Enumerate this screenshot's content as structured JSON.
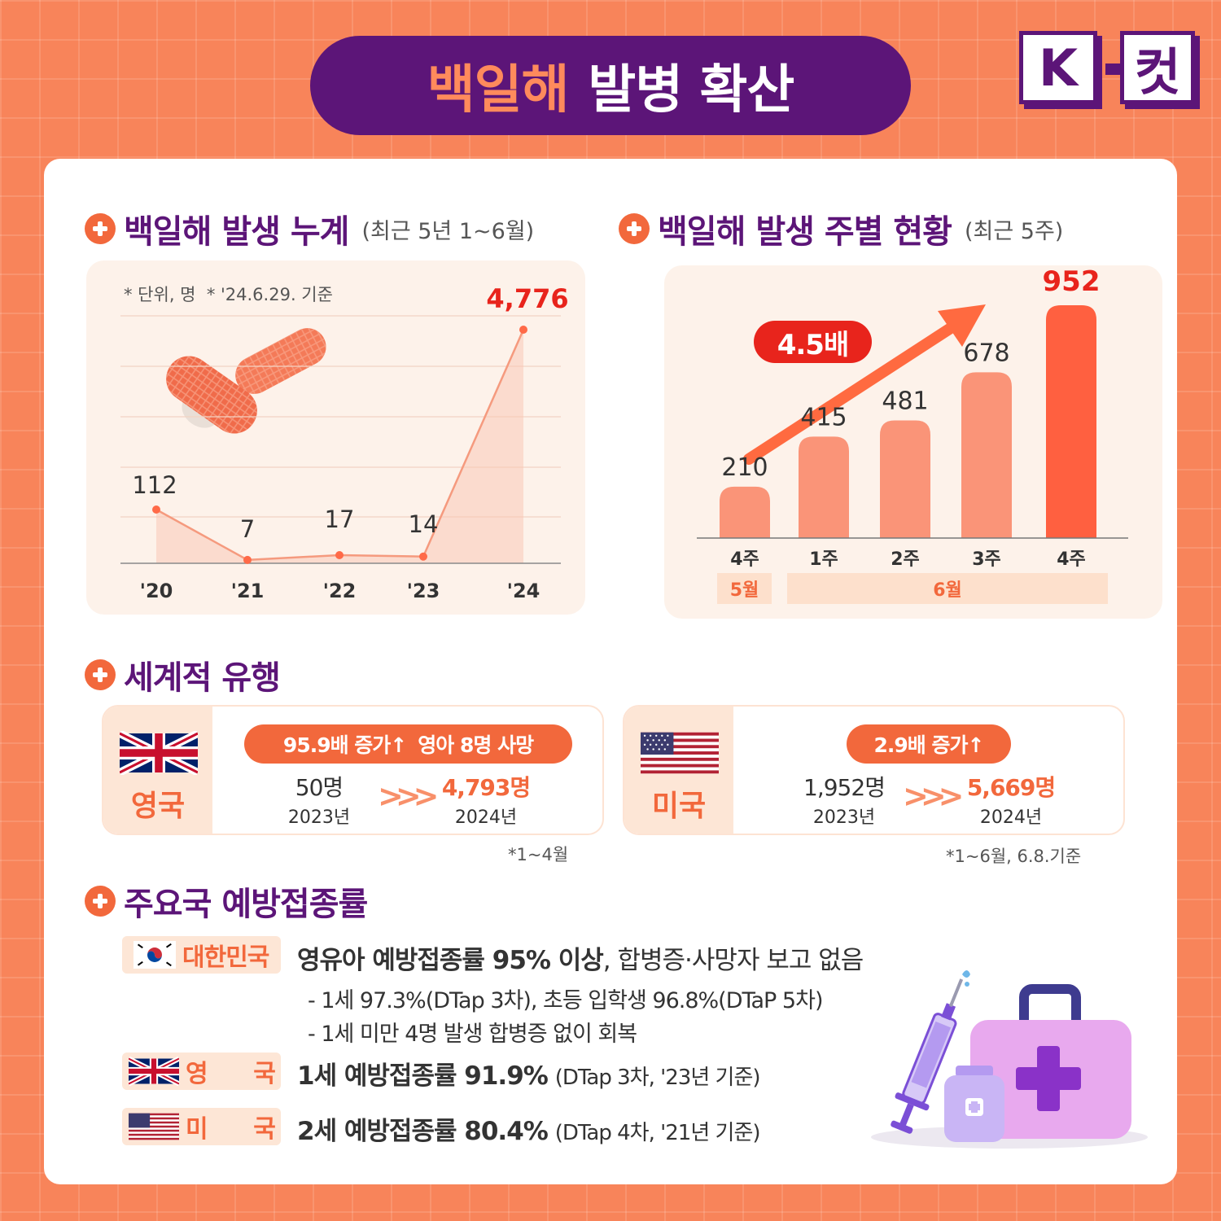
{
  "header": {
    "title_accent": "백일해",
    "title_main": "발병 확산",
    "logo_left": "K",
    "logo_right": "컷"
  },
  "sections": {
    "cumulative": {
      "title": "백일해 발생 누계",
      "subtitle": "(최근 5년 1~6월)",
      "note": "* 단위, 명  * '24.6.29. 기준"
    },
    "weekly": {
      "title": "백일해 발생 주별 현황",
      "subtitle": "(최근 5주)",
      "growth_badge": "4.5배",
      "month_may": "5월",
      "month_june": "6월"
    },
    "world": {
      "title": "세계적 유행"
    },
    "vaccination": {
      "title": "주요국 예방접종률"
    }
  },
  "chart_data": [
    {
      "type": "line",
      "categories": [
        "'20",
        "'21",
        "'22",
        "'23",
        "'24"
      ],
      "values": [
        112,
        7,
        17,
        14,
        4776
      ],
      "labels": [
        "112",
        "7",
        "17",
        "14",
        "4,776"
      ],
      "highlight_index": 4,
      "grid": true
    },
    {
      "type": "bar",
      "categories": [
        "4주",
        "1주",
        "2주",
        "3주",
        "4주"
      ],
      "values": [
        210,
        415,
        481,
        678,
        952
      ],
      "labels": [
        "210",
        "415",
        "481",
        "678",
        "952"
      ],
      "highlight_index": 4,
      "colors": {
        "bar": "#fa9478",
        "highlight": "#ff6040"
      }
    }
  ],
  "world": {
    "uk": {
      "country": "영국",
      "badge_increase": "95.9배 증가↑",
      "badge_deaths": "영아 8명 사망",
      "prev_value": "50명",
      "prev_year": "2023년",
      "next_value": "4,793명",
      "next_year": "2024년",
      "note": "*1~4월"
    },
    "us": {
      "country": "미국",
      "badge_increase": "2.9배 증가↑",
      "prev_value": "1,952명",
      "prev_year": "2023년",
      "next_value": "5,669명",
      "next_year": "2024년",
      "note": "*1~6월, 6.8.기준"
    },
    "arrows": ">>>"
  },
  "vaccination": {
    "korea": {
      "label": "대한민국",
      "headline": "영유아 예방접종률 95% 이상",
      "tail": ", 합병증·사망자 보고 없음",
      "line1": "- 1세 97.3%(DTap 3차), 초등 입학생 96.8%(DTaP 5차)",
      "line2": "- 1세 미만 4명 발생 합병증 없이 회복"
    },
    "uk": {
      "label": "영      국",
      "headline": "1세 예방접종률 91.9%",
      "detail": "(DTap 3차, '23년 기준)"
    },
    "us": {
      "label": "미      국",
      "headline": "2세 예방접종률 80.4%",
      "detail": "(DTap 4차, '21년 기준)"
    }
  },
  "colors": {
    "background": "#f8845a",
    "purple": "#5c1578",
    "accent": "#f2683c",
    "highlight_red": "#e8241c"
  }
}
